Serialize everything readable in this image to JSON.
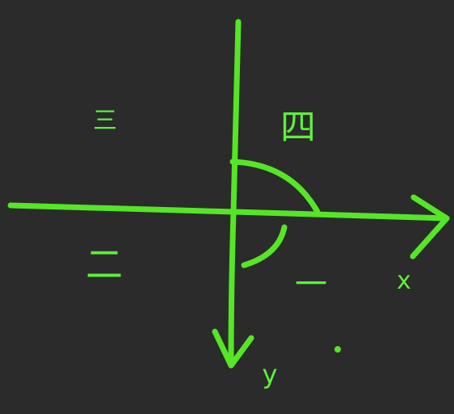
{
  "colors": {
    "background": "#2b2b2b",
    "stroke": "#55e626",
    "text": "#5cf03a"
  },
  "labels": {
    "quadrant_top_left": "三",
    "quadrant_top_right": "四",
    "quadrant_bottom_left": "二",
    "quadrant_bottom_right": "一",
    "x_axis": "x",
    "y_axis": "y"
  }
}
